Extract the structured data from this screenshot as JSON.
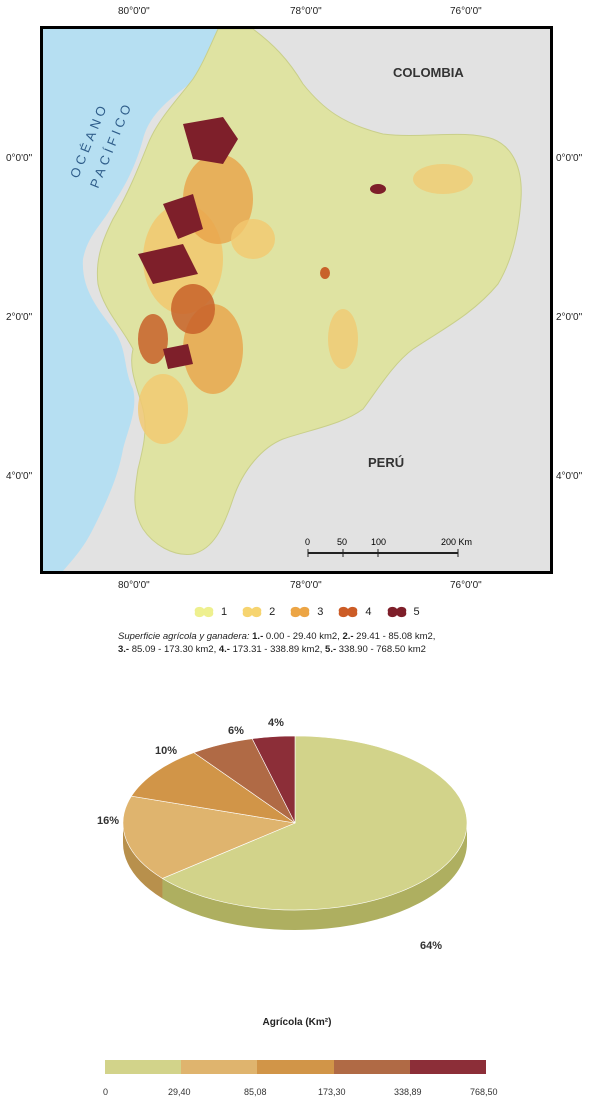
{
  "map": {
    "longitudes": [
      "80°0'0\"",
      "78°0'0\"",
      "76°0'0\""
    ],
    "latitudes": [
      "0°0'0\"",
      "2°0'0\"",
      "4°0'0\""
    ],
    "labels": {
      "ocean_line1": "OCÉANO",
      "ocean_line2": "PACÍFICO",
      "colombia": "COLOMBIA",
      "peru": "PERÚ"
    },
    "scalebar": {
      "ticks": [
        "0",
        "50",
        "100",
        "200 Km"
      ]
    },
    "colors": {
      "ocean": "#b6dff2",
      "neighbor": "#e2e2e2",
      "class1": "#e3e6a6",
      "class2": "#f2c86f",
      "class3": "#e9a24a",
      "class4": "#c8622a",
      "class5": "#7e1f2a"
    }
  },
  "legend": {
    "items": [
      {
        "label": "1",
        "color": "#eef08f"
      },
      {
        "label": "2",
        "color": "#f6d470"
      },
      {
        "label": "3",
        "color": "#eca545"
      },
      {
        "label": "4",
        "color": "#cc5c26"
      },
      {
        "label": "5",
        "color": "#7e1f2a"
      }
    ]
  },
  "caption": {
    "lead": "Superficie agrícola y ganadera: ",
    "c1n": "1.-",
    "c1": " 0.00 - 29.40 km2, ",
    "c2n": "2.-",
    "c2": " 29.41 - 85.08 km2,",
    "c3n": "3.-",
    "c3": " 85.09 - 173.30 km2, ",
    "c4n": "4.-",
    "c4": " 173.31 - 338.89 km2, ",
    "c5n": "5.-",
    "c5": " 338.90 - 768.50 km2"
  },
  "chart_data": {
    "type": "pie",
    "title": "Agrícola (Km²)",
    "slices": [
      {
        "label": "64%",
        "value": 64,
        "color": "#d2d38a",
        "side": "#aeaf60"
      },
      {
        "label": "16%",
        "value": 16,
        "color": "#dfb46e",
        "side": "#b8904c"
      },
      {
        "label": "10%",
        "value": 10,
        "color": "#d19548",
        "side": "#a87432"
      },
      {
        "label": "6%",
        "value": 6,
        "color": "#b06a45",
        "side": "#8a4e30"
      },
      {
        "label": "4%",
        "value": 4,
        "color": "#8c2e38",
        "side": "#6a1f28"
      }
    ],
    "scale": {
      "labels": [
        "0",
        "29,40",
        "85,08",
        "173,30",
        "338,89",
        "768,50"
      ],
      "colors": [
        "#d2d38a",
        "#dfb46e",
        "#d19548",
        "#b06a45",
        "#8c2e38"
      ]
    }
  }
}
